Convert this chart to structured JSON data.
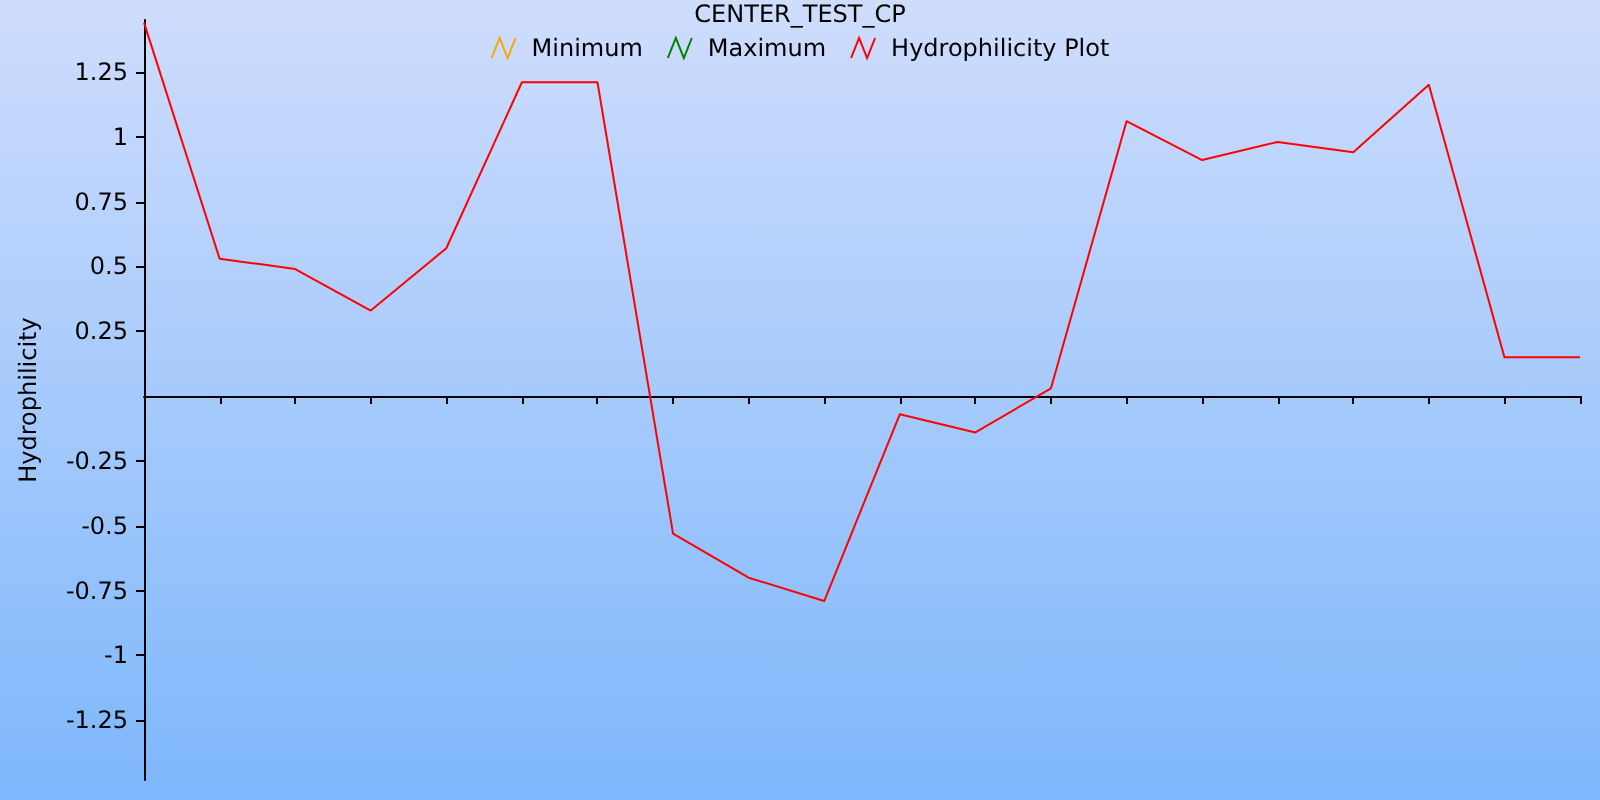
{
  "chart_data": {
    "type": "line",
    "title": "CENTER_TEST_CP",
    "ylabel": "Hydrophilicity",
    "categories": [
      null,
      null,
      null,
      null,
      null,
      null,
      null,
      null,
      null,
      null,
      null,
      null,
      null,
      null,
      null,
      null,
      null,
      null,
      null,
      null
    ],
    "series": [
      {
        "name": "Minimum",
        "color": "#ffa500",
        "values": [
          null,
          null,
          null,
          null,
          null,
          null,
          null,
          null,
          null,
          null,
          null,
          null,
          null,
          null,
          null,
          null,
          null,
          null,
          null,
          null
        ]
      },
      {
        "name": "Maximum",
        "color": "#008000",
        "values": [
          null,
          null,
          null,
          null,
          null,
          null,
          null,
          null,
          null,
          null,
          null,
          null,
          null,
          null,
          null,
          null,
          null,
          null,
          null,
          null
        ]
      },
      {
        "name": "Hydrophilicity Plot",
        "color": "#ff0000",
        "values": [
          1.44,
          0.53,
          0.49,
          0.33,
          0.57,
          1.21,
          1.21,
          -0.53,
          -0.7,
          -0.79,
          -0.07,
          -0.14,
          0.03,
          1.06,
          0.91,
          0.98,
          0.94,
          1.2,
          0.15,
          0.15
        ]
      }
    ],
    "ylim": [
      -1.48,
      1.45
    ],
    "yticks": [
      -1.25,
      -1,
      -0.75,
      -0.5,
      -0.25,
      0.25,
      0.5,
      0.75,
      1,
      1.25
    ],
    "grid": false,
    "legend": "top",
    "marker": "none",
    "line_style": "solid"
  }
}
